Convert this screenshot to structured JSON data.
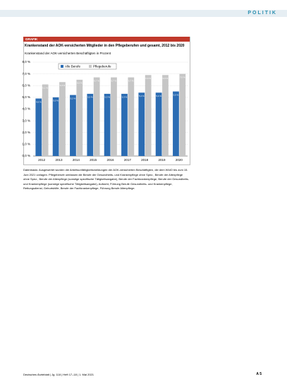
{
  "header": {
    "section": "POLITIK"
  },
  "badge": "GRAFIK",
  "chart_data": {
    "type": "bar",
    "title": "Krankenstand der AOK-versicherten Mitglieder in den Pflegeberufen und gesamt, 2012 bis 2020",
    "subtitle": "Krankenstand der AOK-versicherten Beschäftigten in Prozent",
    "categories": [
      "2012",
      "2013",
      "2014",
      "2015",
      "2016",
      "2017",
      "2018",
      "2019",
      "2020"
    ],
    "series": [
      {
        "name": "Alle Berufe",
        "color": "#2b6cb3",
        "values": [
          4.9,
          5.0,
          5.2,
          5.3,
          5.3,
          5.3,
          5.4,
          5.4,
          5.5
        ],
        "value_labels": [
          "4,9 %",
          "5,0 %",
          "5,2 %",
          "5,3 %",
          "5,3 %",
          "5,3 %",
          "5,4 %",
          "5,4 %",
          "5,5 %"
        ]
      },
      {
        "name": "Pflegeberufe",
        "color": "#c6c6c6",
        "values": [
          6.1,
          6.3,
          6.5,
          6.7,
          6.7,
          6.7,
          6.9,
          6.9,
          7.0
        ],
        "value_labels": [
          "6,1 %",
          "6,3 %",
          "6,5 %",
          "6,7 %",
          "6,7 %",
          "6,7 %",
          "6,9 %",
          "6,9 %",
          "7,0 %"
        ]
      }
    ],
    "ylim": [
      0,
      8
    ],
    "yticks": [
      {
        "value": 0,
        "label": "0,0 %"
      },
      {
        "value": 1,
        "label": "1,0 %"
      },
      {
        "value": 2,
        "label": "2,0 %"
      },
      {
        "value": 3,
        "label": "3,0 %"
      },
      {
        "value": 4,
        "label": "4,0 %"
      },
      {
        "value": 5,
        "label": "5,0 %"
      },
      {
        "value": 6,
        "label": "6,0 %"
      },
      {
        "value": 7,
        "label": "7,0 %"
      },
      {
        "value": 8,
        "label": "8,0 %"
      }
    ],
    "grid": true,
    "legend": "top"
  },
  "caption": "Datenbasis: Ausgewertet wurden die Arbeitsunfähigkeitsmeldungen der AOK-versicherten Beschäftigten, die dem WIdO bis zum 15. Juni 2021 vorlagen. Pflegeberufe umfassen die Berufe der Gesundheits- und Krankenpflege ohne Spez., Berufe der Altenpflege ohne Spez., Berufe der Altenpflege (sonstige spezifische Tätigkeitsangabe), Berufe der Fachkrankenpflege, Berufe der Gesundheits- und Krankenpflege (sonstige spezifische Tätigkeitsangabe), Aufsicht, Führung Berufe Gesundheits- und Krankenpflege, Rettungsdienst, Geburtshilfe, Berufe der Fachkrankenpflege, Führung Berufe Altenpflege.",
  "footer": {
    "journal": "Deutsches Ärzteblatt | Jg. 118 | Heft 17–18 | 1. Mai 2021",
    "page": "A 5"
  }
}
